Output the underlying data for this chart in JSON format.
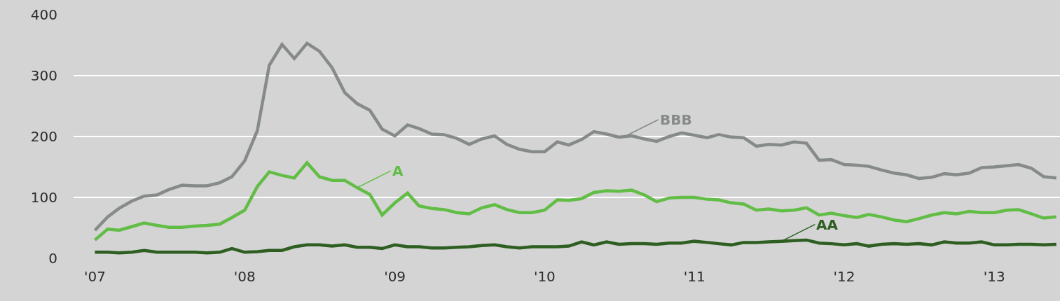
{
  "chart_data": {
    "type": "line",
    "x": [
      "2007-01",
      "2007-02",
      "2007-03",
      "2007-04",
      "2007-05",
      "2007-06",
      "2007-07",
      "2007-08",
      "2007-09",
      "2007-10",
      "2007-11",
      "2007-12",
      "2008-01",
      "2008-02",
      "2008-03",
      "2008-04",
      "2008-05",
      "2008-06",
      "2008-07",
      "2008-08",
      "2008-09",
      "2008-10",
      "2008-11",
      "2008-12",
      "2009-01",
      "2009-02",
      "2009-03",
      "2009-04",
      "2009-05",
      "2009-06",
      "2009-07",
      "2009-08",
      "2009-09",
      "2009-10",
      "2009-11",
      "2009-12",
      "2010-01",
      "2010-02",
      "2010-03",
      "2010-04",
      "2010-05",
      "2010-06",
      "2010-07",
      "2010-08",
      "2010-09",
      "2010-10",
      "2010-11",
      "2010-12",
      "2011-01",
      "2011-02",
      "2011-03",
      "2011-04",
      "2011-05",
      "2011-06",
      "2011-07",
      "2011-08",
      "2011-09",
      "2011-10",
      "2011-11",
      "2011-12",
      "2012-01",
      "2012-02",
      "2012-03",
      "2012-04",
      "2012-05",
      "2012-06",
      "2012-07",
      "2012-08",
      "2012-09",
      "2012-10",
      "2012-11",
      "2012-12",
      "2013-01",
      "2013-02",
      "2013-03",
      "2013-04",
      "2013-05",
      "2013-06"
    ],
    "series": [
      {
        "color": "#868b8a",
        "values": [
          46,
          68,
          82,
          94,
          102,
          104,
          113,
          120,
          119,
          119,
          124,
          134,
          160,
          210,
          317,
          351,
          328,
          353,
          340,
          313,
          272,
          254,
          243,
          212,
          201,
          219,
          213,
          204,
          203,
          197,
          187,
          196,
          201,
          187,
          179,
          175,
          175,
          191,
          186,
          195,
          208,
          204,
          199,
          201,
          196,
          192,
          200,
          206,
          202,
          198,
          203,
          199,
          198,
          184,
          187,
          186,
          191,
          189,
          161,
          162,
          154,
          153,
          151,
          145,
          140,
          137,
          131,
          133,
          139,
          137,
          140,
          149,
          150,
          152,
          154,
          148,
          134,
          132
        ]
      },
      {
        "color": "#62bd46",
        "values": [
          30,
          48,
          46,
          52,
          58,
          54,
          51,
          51,
          53,
          54,
          56,
          67,
          79,
          118,
          142,
          136,
          132,
          157,
          134,
          128,
          128,
          116,
          105,
          71,
          91,
          107,
          86,
          82,
          80,
          75,
          73,
          83,
          88,
          80,
          75,
          75,
          79,
          96,
          95,
          98,
          108,
          111,
          110,
          112,
          104,
          93,
          99,
          100,
          100,
          97,
          96,
          91,
          89,
          79,
          81,
          78,
          79,
          83,
          71,
          74,
          70,
          67,
          72,
          68,
          63,
          60,
          65,
          71,
          75,
          73,
          77,
          75,
          75,
          79,
          80,
          73,
          66,
          68
        ]
      },
      {
        "color": "#2e5e22",
        "values": [
          10,
          10,
          9,
          10,
          13,
          10,
          10,
          10,
          10,
          9,
          10,
          16,
          10,
          11,
          13,
          13,
          19,
          22,
          22,
          20,
          22,
          18,
          18,
          16,
          22,
          19,
          19,
          17,
          17,
          18,
          19,
          21,
          22,
          19,
          17,
          19,
          19,
          19,
          20,
          27,
          22,
          27,
          23,
          24,
          24,
          23,
          25,
          25,
          28,
          26,
          24,
          22,
          26,
          26,
          27,
          28,
          29,
          30,
          25,
          24,
          22,
          24,
          20,
          23,
          24,
          23,
          24,
          22,
          27,
          25,
          25,
          27,
          22,
          22,
          23,
          23,
          22,
          23
        ]
      }
    ],
    "annotations": [
      {
        "text": "BBB",
        "x": "2010-07-15",
        "y": 200
      },
      {
        "text": "A",
        "x": "2008-10",
        "y": 116
      },
      {
        "text": "AA",
        "x": "2011-08",
        "y": 28
      }
    ],
    "xlim": [
      "2006-11-10",
      "2013-06-10"
    ],
    "xticks": [
      {
        "value": "2007-01",
        "label": "'07"
      },
      {
        "value": "2008-01",
        "label": "'08"
      },
      {
        "value": "2009-01",
        "label": "'09"
      },
      {
        "value": "2010-01",
        "label": "'10"
      },
      {
        "value": "2011-01",
        "label": "'11"
      },
      {
        "value": "2012-01",
        "label": "'12"
      },
      {
        "value": "2013-01",
        "label": "'13"
      }
    ],
    "ylim": [
      0,
      400
    ],
    "yticks": [
      0,
      100,
      200,
      300,
      400
    ],
    "grid": "y",
    "line_style": "solid",
    "marker": "none"
  }
}
